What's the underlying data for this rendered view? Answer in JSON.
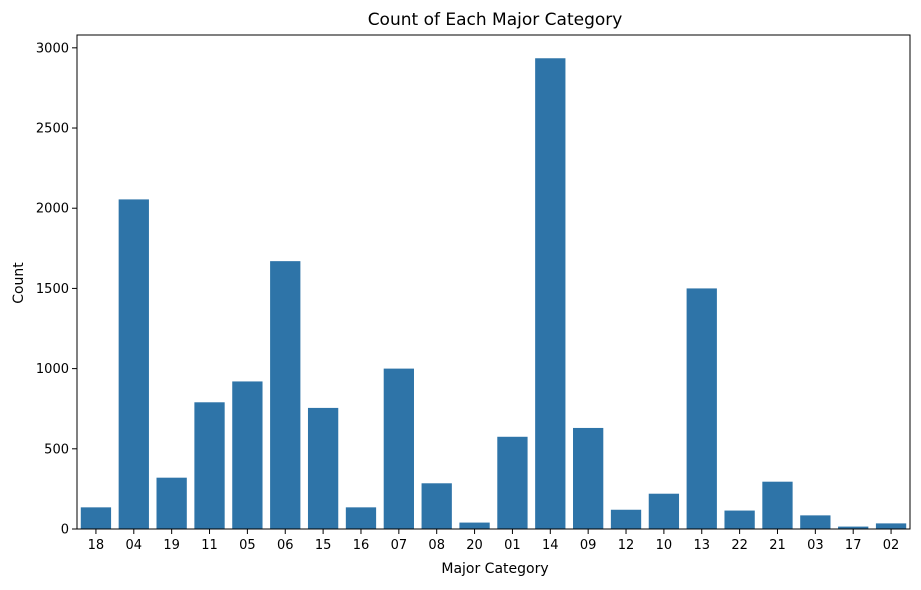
{
  "chart_data": {
    "type": "bar",
    "title": "Count of Each Major Category",
    "xlabel": "Major Category",
    "ylabel": "Count",
    "categories": [
      "18",
      "04",
      "19",
      "11",
      "05",
      "06",
      "15",
      "16",
      "07",
      "08",
      "20",
      "01",
      "14",
      "09",
      "12",
      "10",
      "13",
      "22",
      "21",
      "03",
      "17",
      "02"
    ],
    "values": [
      135,
      2055,
      320,
      790,
      920,
      1670,
      755,
      135,
      1000,
      285,
      40,
      575,
      2935,
      630,
      120,
      220,
      1500,
      115,
      295,
      85,
      15,
      35
    ],
    "ylim": [
      0,
      3080
    ],
    "yticks": [
      0,
      500,
      1000,
      1500,
      2000,
      2500,
      3000
    ],
    "bar_color": "#2e74a8",
    "grid": false,
    "legend": "none"
  }
}
